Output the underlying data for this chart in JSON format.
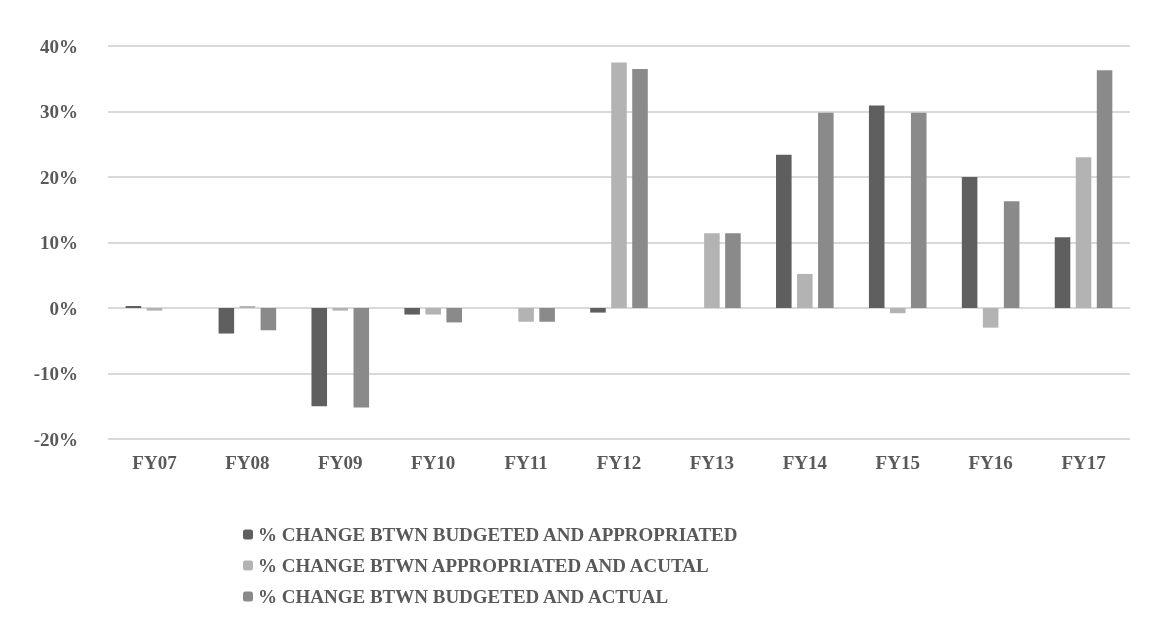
{
  "chart_data": {
    "type": "bar",
    "categories": [
      "FY07",
      "FY08",
      "FY09",
      "FY10",
      "FY11",
      "FY12",
      "FY13",
      "FY14",
      "FY15",
      "FY16",
      "FY17"
    ],
    "series": [
      {
        "name": "% CHANGE BTWN BUDGETED AND APPROPRIATED",
        "color": "#5f5f5f",
        "values": [
          0.3,
          -3.9,
          -15.0,
          -1.0,
          0,
          -0.7,
          0,
          23.4,
          30.9,
          20.0,
          10.8
        ]
      },
      {
        "name": "% CHANGE BTWN APPROPRIATED AND ACUTAL",
        "color": "#b3b3b3",
        "values": [
          -0.4,
          0.3,
          -0.4,
          -1.0,
          -2.1,
          37.5,
          11.4,
          5.2,
          -0.8,
          -3.0,
          23.0
        ]
      },
      {
        "name": "% CHANGE BTWN BUDGETED AND ACTUAL",
        "color": "#8a8a8a",
        "values": [
          0,
          -3.4,
          -15.2,
          -2.2,
          -2.1,
          36.5,
          11.4,
          29.8,
          29.8,
          16.3,
          36.3
        ]
      }
    ],
    "ylim": [
      -20,
      40
    ],
    "yticks": [
      {
        "value": -20,
        "label": "-20%"
      },
      {
        "value": -10,
        "label": "-10%"
      },
      {
        "value": 0,
        "label": "0%"
      },
      {
        "value": 10,
        "label": "10%"
      },
      {
        "value": 20,
        "label": "20%"
      },
      {
        "value": 30,
        "label": "30%"
      },
      {
        "value": 40,
        "label": "40%"
      }
    ],
    "grid": "y",
    "legend": "bottom"
  }
}
